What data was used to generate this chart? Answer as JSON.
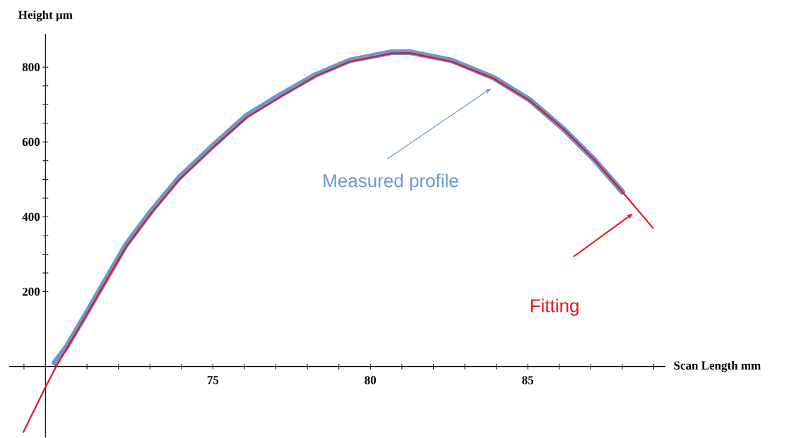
{
  "chart_data": {
    "type": "line",
    "xlabel": "Scan Length mm",
    "ylabel": "Height μm",
    "xlim": [
      68.53,
      89.37
    ],
    "ylim": [
      -189,
      889
    ],
    "xticks": [
      {
        "value": 69,
        "label": null
      },
      {
        "value": 70,
        "label": null
      },
      {
        "value": 71,
        "label": null
      },
      {
        "value": 72,
        "label": null
      },
      {
        "value": 73,
        "label": null
      },
      {
        "value": 74,
        "label": null
      },
      75,
      {
        "value": 76,
        "label": null
      },
      {
        "value": 77,
        "label": null
      },
      {
        "value": 78,
        "label": null
      },
      {
        "value": 79,
        "label": null
      },
      80,
      {
        "value": 81,
        "label": null
      },
      {
        "value": 82,
        "label": null
      },
      {
        "value": 83,
        "label": null
      },
      {
        "value": 84,
        "label": null
      },
      85,
      {
        "value": 86,
        "label": null
      },
      {
        "value": 87,
        "label": null
      },
      {
        "value": 88,
        "label": null
      },
      {
        "value": 89,
        "label": null
      }
    ],
    "yticks": [
      200,
      400,
      600,
      800
    ],
    "grid": false,
    "marker": "none",
    "series": [
      {
        "color": "#6b97cf",
        "x": [
          69.97,
          70.37,
          71.0,
          71.62,
          72.24,
          73.04,
          73.93,
          75.0,
          76.06,
          77.13,
          78.28,
          79.35,
          80.68,
          81.25,
          82.58,
          83.91,
          85.07,
          86.13,
          87.11,
          88.0
        ],
        "values": [
          10,
          55,
          145,
          235,
          325,
          415,
          505,
          590,
          670,
          725,
          780,
          818,
          840,
          840,
          818,
          772,
          712,
          635,
          553,
          467
        ]
      },
      {
        "color": "#e8141b",
        "x": [
          68.98,
          69.68,
          70.02,
          70.37,
          71.0,
          71.62,
          72.24,
          73.04,
          73.93,
          75.0,
          76.06,
          77.13,
          78.28,
          79.35,
          80.68,
          81.25,
          82.58,
          83.91,
          85.07,
          86.13,
          87.11,
          88.0,
          88.98
        ],
        "values": [
          -175,
          -55,
          0,
          50,
          140,
          230,
          320,
          410,
          500,
          585,
          665,
          720,
          777,
          815,
          837,
          838,
          815,
          770,
          710,
          635,
          553,
          467,
          370
        ]
      }
    ],
    "annotations": [
      "Measured profile",
      "Fitting"
    ]
  }
}
